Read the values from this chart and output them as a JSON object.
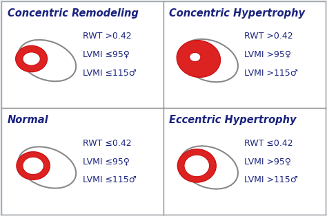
{
  "title_color": "#1a237e",
  "text_color": "#1a237e",
  "bg_color": "#e8edf2",
  "cell_bg": "#ffffff",
  "border_color": "#999999",
  "quadrants": [
    {
      "title": "Concentric Remodeling",
      "lines": [
        "RWT >0.42",
        "LVMI ≤95♀",
        "LVMI ≤115♂"
      ],
      "heart_type": "concentric_remodeling"
    },
    {
      "title": "Concentric Hypertrophy",
      "lines": [
        "RWT >0.42",
        "LVMI >95♀",
        "LVMI >115♂"
      ],
      "heart_type": "concentric_hypertrophy"
    },
    {
      "title": "Normal",
      "lines": [
        "RWT ≤0.42",
        "LVMI ≤95♀",
        "LVMI ≤115♂"
      ],
      "heart_type": "normal"
    },
    {
      "title": "Eccentric Hypertrophy",
      "lines": [
        "RWT ≤0.42",
        "LVMI >95♀",
        "LVMI >115♂"
      ],
      "heart_type": "eccentric_hypertrophy"
    }
  ],
  "title_fontsize": 10.5,
  "text_fontsize": 9.0
}
